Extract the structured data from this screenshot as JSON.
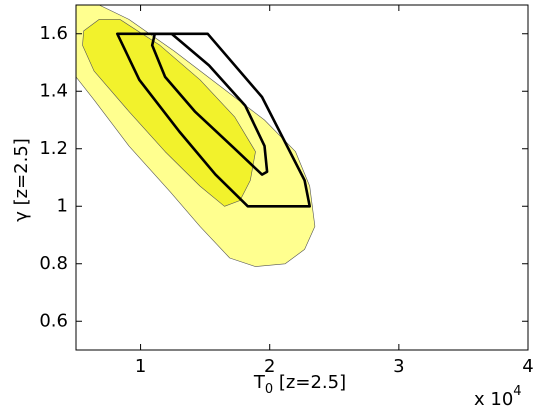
{
  "chart_data": {
    "type": "contour",
    "x_label": {
      "main": "T",
      "sub": "0",
      "rest": " [z=2.5]"
    },
    "y_label": "γ [z=2.5]",
    "x_multiplier": {
      "base": "x 10",
      "exponent": "4"
    },
    "xlim": [
      0.5,
      4
    ],
    "ylim": [
      0.5,
      1.7
    ],
    "xticks": [
      1,
      2,
      3,
      4
    ],
    "yticks": [
      0.6,
      0.8,
      1,
      1.2,
      1.4,
      1.6
    ],
    "series": [
      {
        "color": "#ffff8f",
        "filled": true,
        "edge_color": "#555",
        "x": [
          0.5,
          0.68,
          0.91,
          1.26,
          1.61,
          1.96,
          2.2,
          2.31,
          2.35,
          2.27,
          2.12,
          1.89,
          1.69,
          1.46,
          1.23,
          0.91,
          0.64,
          0.5
        ],
        "y": [
          1.7,
          1.7,
          1.65,
          1.54,
          1.42,
          1.3,
          1.19,
          1.07,
          0.93,
          0.85,
          0.8,
          0.79,
          0.82,
          0.93,
          1.05,
          1.21,
          1.37,
          1.45
        ]
      },
      {
        "color": "#f2f22c",
        "filled": true,
        "edge_color": "#555",
        "x": [
          0.56,
          0.68,
          0.84,
          1.15,
          1.46,
          1.73,
          1.89,
          1.85,
          1.77,
          1.65,
          1.46,
          1.19,
          0.91,
          0.64,
          0.55
        ],
        "y": [
          1.61,
          1.65,
          1.65,
          1.56,
          1.44,
          1.31,
          1.19,
          1.09,
          1.02,
          1.0,
          1.07,
          1.19,
          1.33,
          1.47,
          1.56
        ]
      },
      {
        "color": "#000000",
        "filled": false,
        "x": [
          0.82,
          1.52,
          1.94,
          2.27,
          2.31,
          1.83,
          1.58,
          1.3,
          0.99
        ],
        "y": [
          1.6,
          1.6,
          1.38,
          1.09,
          1.0,
          1.0,
          1.11,
          1.26,
          1.44
        ]
      },
      {
        "color": "#000000",
        "filled": false,
        "x": [
          1.11,
          1.24,
          1.53,
          1.81,
          1.96,
          1.98,
          1.94,
          1.73,
          1.42,
          1.19,
          1.09
        ],
        "y": [
          1.6,
          1.6,
          1.49,
          1.35,
          1.21,
          1.12,
          1.11,
          1.2,
          1.33,
          1.45,
          1.56
        ]
      }
    ]
  }
}
